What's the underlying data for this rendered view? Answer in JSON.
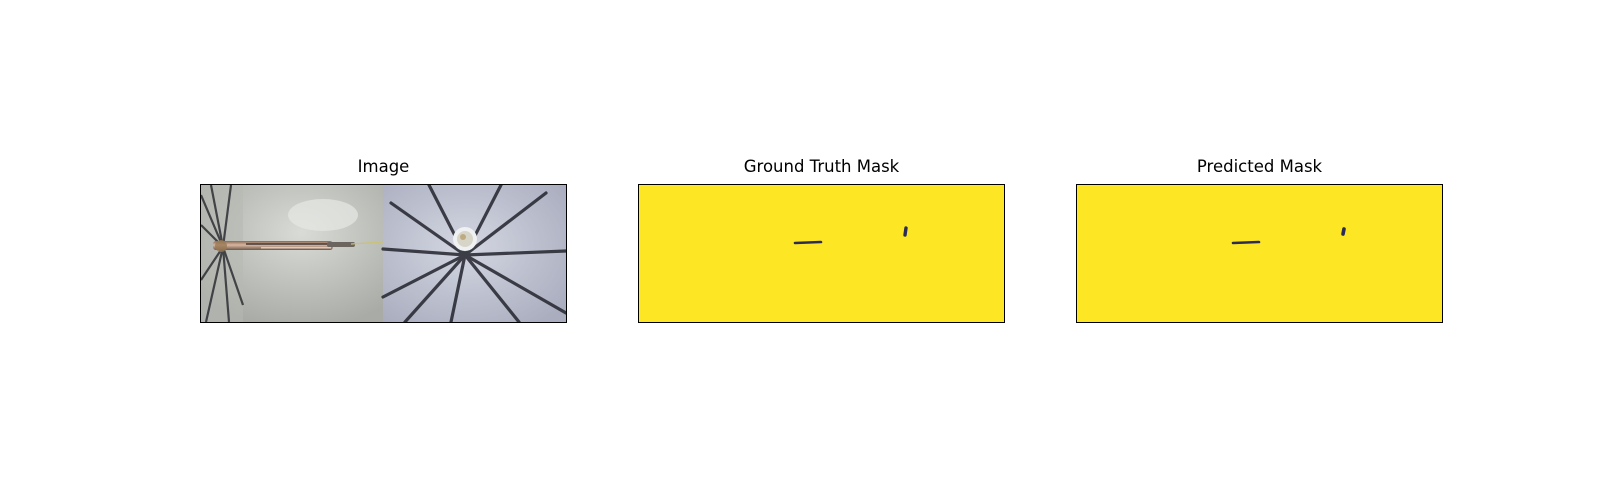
{
  "figure": {
    "panels": [
      {
        "title": "Image",
        "kind": "photograph"
      },
      {
        "title": "Ground Truth Mask",
        "kind": "binary-mask"
      },
      {
        "title": "Predicted Mask",
        "kind": "binary-mask"
      }
    ],
    "colors": {
      "mask_background": "#fde724",
      "mask_foreground": "#2b2b55",
      "frame_border": "#000000"
    }
  }
}
